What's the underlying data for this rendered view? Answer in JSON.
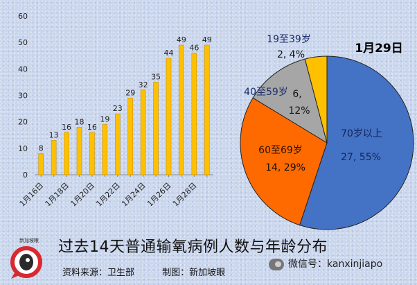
{
  "bar_chart": {
    "ytick_labels": [
      "0",
      "10",
      "20",
      "30",
      "40",
      "50",
      "60"
    ],
    "xtick_labels": [
      "1月16日",
      "1月18日",
      "1月20日",
      "1月22日",
      "1月24日",
      "1月26日",
      "1月28日"
    ]
  },
  "pie_chart": {
    "title": "1月29日",
    "slices": [
      {
        "name": "70岁以上",
        "label_name": "70岁以上",
        "label_value": "27, 55%",
        "color": "#4472c4"
      },
      {
        "name": "60至69岁",
        "label_name": "60至69岁",
        "label_value": "14, 29%",
        "color": "#ff6a00"
      },
      {
        "name": "40至59岁",
        "label_name": "40至59岁",
        "label_value": "6,",
        "label_pct": "12%",
        "color": "#a6a6a6"
      },
      {
        "name": "19至39岁",
        "label_name": "19至39岁",
        "label_value": "2, 4%",
        "color": "#ffc000"
      }
    ]
  },
  "chart_data": [
    {
      "type": "bar",
      "categories": [
        "1月16日",
        "1月17日",
        "1月18日",
        "1月19日",
        "1月20日",
        "1月21日",
        "1月22日",
        "1月23日",
        "1月24日",
        "1月25日",
        "1月26日",
        "1月27日",
        "1月28日",
        "1月29日"
      ],
      "values": [
        8,
        13,
        16,
        18,
        16,
        19,
        23,
        29,
        32,
        35,
        44,
        49,
        46,
        49
      ],
      "ylim": [
        0,
        60
      ],
      "yticks": [
        0,
        10,
        20,
        30,
        40,
        50,
        60
      ],
      "grid": false,
      "bar_color": "#ffc000"
    },
    {
      "type": "pie",
      "title": "1月29日",
      "labels": [
        "70岁以上",
        "60至69岁",
        "40至59岁",
        "19至39岁"
      ],
      "values": [
        27,
        14,
        6,
        2
      ],
      "percentages": [
        55,
        29,
        12,
        4
      ]
    }
  ],
  "footer": {
    "title": "过去14天普通输氧病例人数与年龄分布",
    "source": "资料来源：卫生部",
    "credit": "制图：新加坡眼"
  },
  "logo": {
    "text": "新加坡眼"
  },
  "watermark": {
    "text": "微信号：kanxinjiapo"
  }
}
